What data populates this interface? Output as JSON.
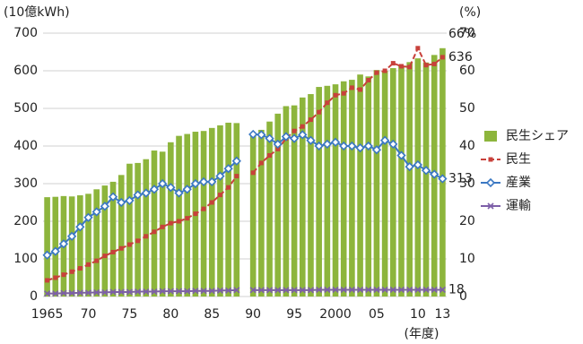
{
  "chart_data": {
    "type": "bar-line",
    "y_label": "(10億kWh)",
    "y2_label": "(%)",
    "x_label": "(年度)",
    "categories": [
      "1965",
      null,
      null,
      null,
      null,
      "70",
      null,
      null,
      null,
      null,
      "75",
      null,
      null,
      null,
      null,
      "80",
      null,
      null,
      null,
      null,
      "85",
      null,
      null,
      null,
      null,
      "90",
      null,
      null,
      null,
      null,
      "95",
      null,
      null,
      null,
      null,
      "2000",
      null,
      null,
      null,
      null,
      "05",
      null,
      null,
      null,
      null,
      "10",
      null,
      null,
      "13"
    ],
    "ylim": [
      0,
      700
    ],
    "yticks": [
      0,
      100,
      200,
      300,
      400,
      500,
      600,
      700
    ],
    "y2lim": [
      0,
      70
    ],
    "y2ticks": [
      0,
      10,
      20,
      30,
      40,
      50,
      60,
      70
    ],
    "grid": true,
    "legend": "right",
    "series": [
      {
        "name": "民生シェア",
        "kind": "bar",
        "axis": "y2",
        "color": "#8db53c",
        "values": [
          26.4,
          26.5,
          26.7,
          26.6,
          26.9,
          27.3,
          28.5,
          29.5,
          30.5,
          32.3,
          35.3,
          35.5,
          36.5,
          38.8,
          38.5,
          41,
          42.7,
          43.2,
          43.8,
          44,
          44.8,
          45.5,
          46.2,
          46.1,
          null,
          42.9,
          44.3,
          46.5,
          48.6,
          50.6,
          50.8,
          52.9,
          53.8,
          55.7,
          56,
          56.4,
          57.2,
          57.6,
          59,
          58.5,
          60.2,
          60,
          60.7,
          61.3,
          62.3,
          63.3,
          62.2,
          64.2,
          66
        ],
        "value_labels": [
          null,
          null,
          null,
          null,
          null,
          null,
          null,
          null,
          null,
          null,
          null,
          null,
          null,
          null,
          null,
          null,
          null,
          null,
          null,
          null,
          null,
          null,
          null,
          null,
          null,
          null,
          null,
          null,
          null,
          null,
          null,
          null,
          null,
          null,
          null,
          null,
          null,
          null,
          null,
          null,
          null,
          null,
          null,
          null,
          null,
          null,
          null,
          null,
          "66%"
        ]
      },
      {
        "name": "民生",
        "kind": "line",
        "marker": "square",
        "dashed": true,
        "color": "#c8413b",
        "values": [
          43,
          50,
          58,
          66,
          75,
          85,
          95,
          108,
          118,
          128,
          138,
          148,
          160,
          172,
          185,
          195,
          200,
          208,
          220,
          233,
          250,
          270,
          290,
          320,
          null,
          329,
          355,
          375,
          392,
          420,
          440,
          452,
          470,
          490,
          515,
          535,
          540,
          555,
          550,
          575,
          595,
          600,
          620,
          612,
          610,
          660,
          615,
          618,
          636
        ],
        "value_labels": [
          null,
          null,
          null,
          null,
          null,
          null,
          null,
          null,
          null,
          null,
          null,
          null,
          null,
          null,
          null,
          null,
          null,
          null,
          null,
          null,
          null,
          null,
          null,
          null,
          null,
          null,
          null,
          null,
          null,
          null,
          null,
          null,
          null,
          null,
          null,
          null,
          null,
          null,
          null,
          null,
          null,
          null,
          null,
          null,
          null,
          null,
          null,
          null,
          "636"
        ]
      },
      {
        "name": "産業",
        "kind": "line",
        "marker": "diamond",
        "dashed": false,
        "color": "#3b78c3",
        "values": [
          110,
          120,
          140,
          160,
          185,
          210,
          225,
          240,
          265,
          250,
          255,
          270,
          275,
          285,
          300,
          290,
          275,
          285,
          300,
          305,
          305,
          320,
          340,
          360,
          null,
          431,
          430,
          420,
          405,
          425,
          420,
          430,
          415,
          400,
          405,
          410,
          400,
          400,
          395,
          400,
          390,
          415,
          405,
          375,
          345,
          350,
          335,
          325,
          313
        ],
        "value_labels": [
          null,
          null,
          null,
          null,
          null,
          null,
          null,
          null,
          null,
          null,
          null,
          null,
          null,
          null,
          null,
          null,
          null,
          null,
          null,
          null,
          null,
          null,
          null,
          null,
          null,
          null,
          null,
          null,
          null,
          null,
          null,
          null,
          null,
          null,
          null,
          null,
          null,
          null,
          null,
          null,
          null,
          null,
          null,
          null,
          null,
          null,
          null,
          null,
          "313"
        ]
      },
      {
        "name": "運輸",
        "kind": "line",
        "marker": "cross",
        "dashed": false,
        "color": "#7d5fa8",
        "values": [
          8,
          8,
          9,
          9,
          10,
          10,
          11,
          11,
          12,
          12,
          12,
          13,
          13,
          13,
          14,
          14,
          14,
          14,
          15,
          15,
          15,
          16,
          16,
          17,
          null,
          17,
          17,
          17,
          17,
          17,
          17,
          17,
          17,
          18,
          18,
          18,
          18,
          18,
          18,
          18,
          18,
          18,
          18,
          18,
          18,
          18,
          18,
          18,
          18
        ],
        "value_labels": [
          null,
          null,
          null,
          null,
          null,
          null,
          null,
          null,
          null,
          null,
          null,
          null,
          null,
          null,
          null,
          null,
          null,
          null,
          null,
          null,
          null,
          null,
          null,
          null,
          null,
          null,
          null,
          null,
          null,
          null,
          null,
          null,
          null,
          null,
          null,
          null,
          null,
          null,
          null,
          null,
          null,
          null,
          null,
          null,
          null,
          null,
          null,
          null,
          "18"
        ]
      }
    ]
  }
}
